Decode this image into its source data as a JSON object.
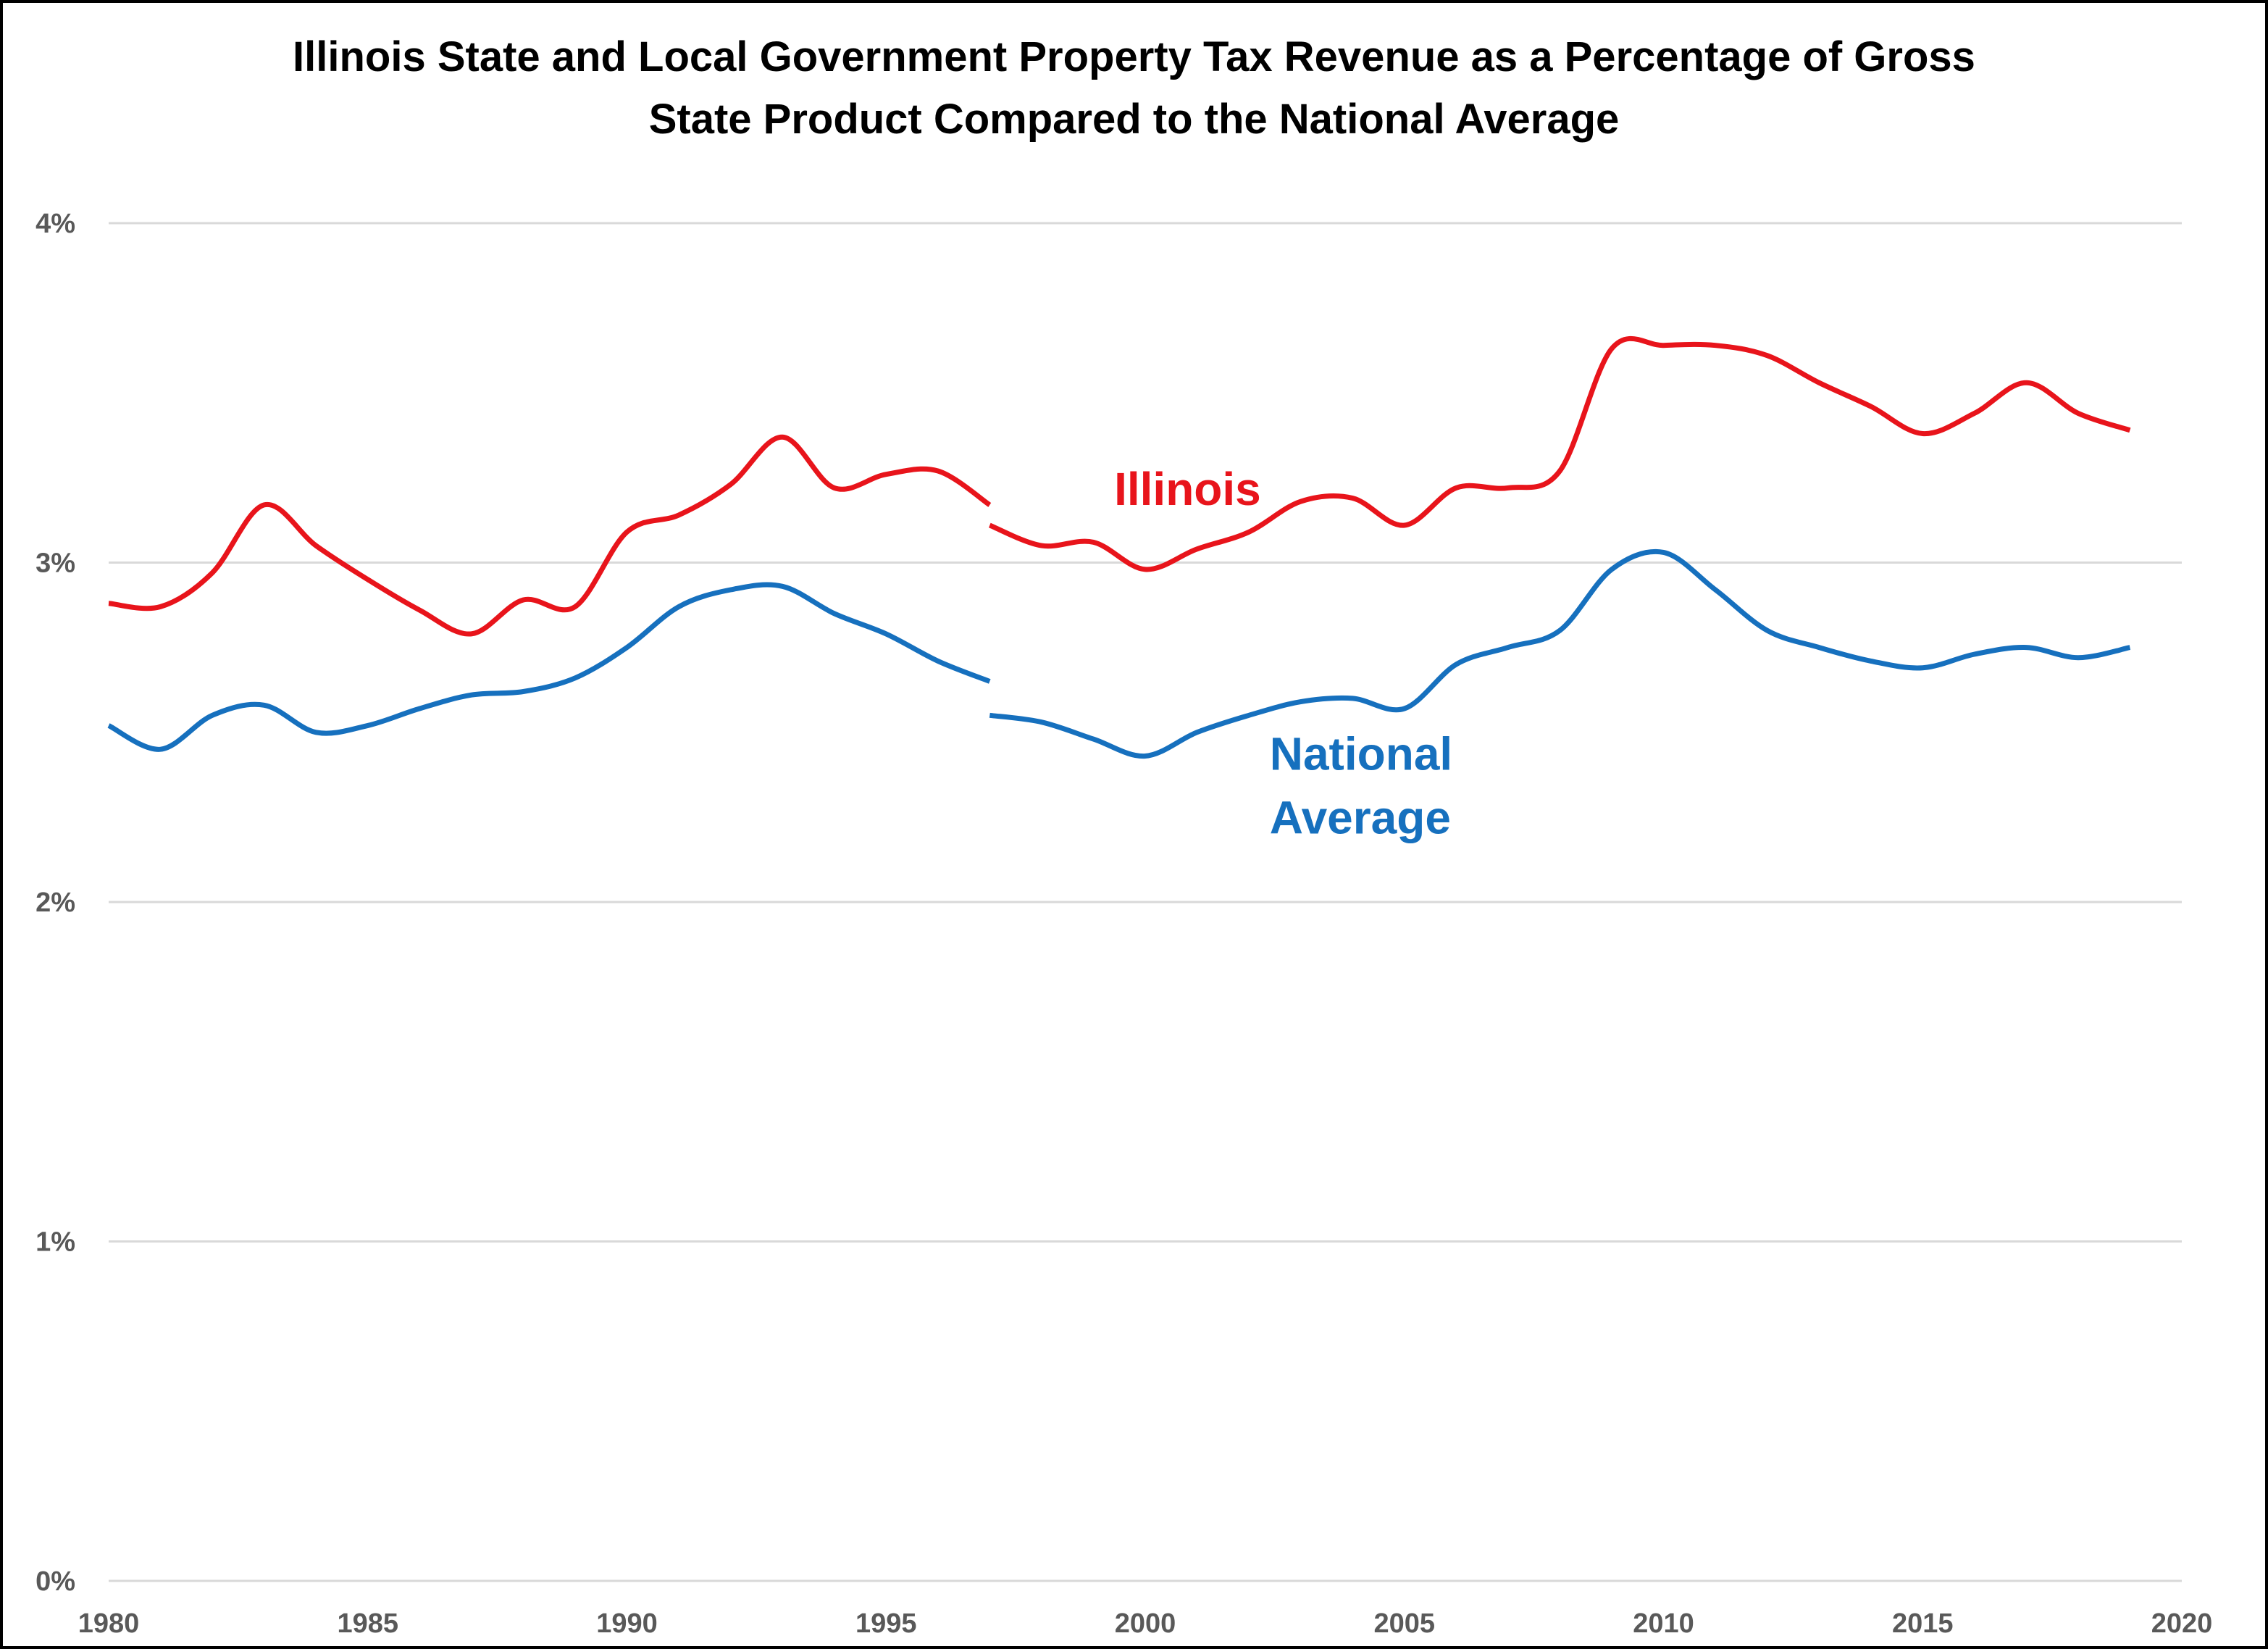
{
  "chart_data": {
    "type": "line",
    "title_lines": [
      "Illinois State and Local Government Property Tax Revenue as a Percentage of Gross",
      "State Product Compared to the National Average"
    ],
    "xlabel": "",
    "ylabel": "",
    "xlim": [
      1980,
      2020
    ],
    "ylim": [
      0,
      4
    ],
    "x_ticks": [
      1980,
      1985,
      1990,
      1995,
      2000,
      2005,
      2010,
      2015,
      2020
    ],
    "x_tick_labels": [
      "1980",
      "1985",
      "1990",
      "1995",
      "2000",
      "2005",
      "2010",
      "2015",
      "2020"
    ],
    "y_ticks": [
      0,
      1,
      2,
      3,
      4
    ],
    "y_tick_labels": [
      "0%",
      "1%",
      "2%",
      "3%",
      "4%"
    ],
    "grid": "horizontal",
    "legend": "none",
    "series": [
      {
        "name": "Illinois",
        "color": "#e8141b",
        "segments": [
          {
            "x": [
              1980,
              1981,
              1982,
              1983,
              1984,
              1985,
              1986,
              1987,
              1988,
              1989,
              1990,
              1991,
              1992,
              1993,
              1994,
              1995,
              1996,
              1997
            ],
            "y": [
              2.88,
              2.87,
              2.97,
              3.17,
              3.05,
              2.95,
              2.86,
              2.79,
              2.89,
              2.87,
              3.09,
              3.14,
              3.23,
              3.37,
              3.22,
              3.26,
              3.27,
              3.17
            ]
          },
          {
            "x": [
              1997,
              1998,
              1999,
              2000,
              2001,
              2002,
              2003,
              2004,
              2005,
              2006,
              2007,
              2008,
              2009,
              2010,
              2011,
              2012,
              2013,
              2014,
              2015,
              2016,
              2017,
              2018,
              2019
            ],
            "y": [
              3.11,
              3.05,
              3.06,
              2.98,
              3.04,
              3.09,
              3.18,
              3.19,
              3.11,
              3.22,
              3.22,
              3.27,
              3.63,
              3.64,
              3.64,
              3.61,
              3.53,
              3.46,
              3.38,
              3.44,
              3.53,
              3.44,
              3.39
            ]
          }
        ]
      },
      {
        "name": "National Average",
        "color": "#1670be",
        "segments": [
          {
            "x": [
              1980,
              1981,
              1982,
              1983,
              1984,
              1985,
              1986,
              1987,
              1988,
              1989,
              1990,
              1991,
              1992,
              1993,
              1994,
              1995,
              1996,
              1997
            ],
            "y": [
              2.52,
              2.45,
              2.55,
              2.58,
              2.5,
              2.52,
              2.57,
              2.61,
              2.62,
              2.66,
              2.75,
              2.87,
              2.92,
              2.93,
              2.85,
              2.79,
              2.71,
              2.65
            ]
          },
          {
            "x": [
              1997,
              1998,
              1999,
              2000,
              2001,
              2002,
              2003,
              2004,
              2005,
              2006,
              2007,
              2008,
              2009,
              2010,
              2011,
              2012,
              2013,
              2014,
              2015,
              2016,
              2017,
              2018,
              2019
            ],
            "y": [
              2.55,
              2.53,
              2.48,
              2.43,
              2.5,
              2.55,
              2.59,
              2.6,
              2.57,
              2.7,
              2.75,
              2.8,
              2.98,
              3.03,
              2.92,
              2.8,
              2.75,
              2.71,
              2.69,
              2.73,
              2.75,
              2.72,
              2.75
            ]
          }
        ]
      }
    ],
    "annotations": [
      {
        "series": "Illinois",
        "lines": [
          "Illinois"
        ],
        "x": 1999.4,
        "y": 3.17
      },
      {
        "series": "National Average",
        "lines": [
          "National",
          "Average"
        ],
        "x": 2002.4,
        "y": 2.39
      }
    ]
  }
}
